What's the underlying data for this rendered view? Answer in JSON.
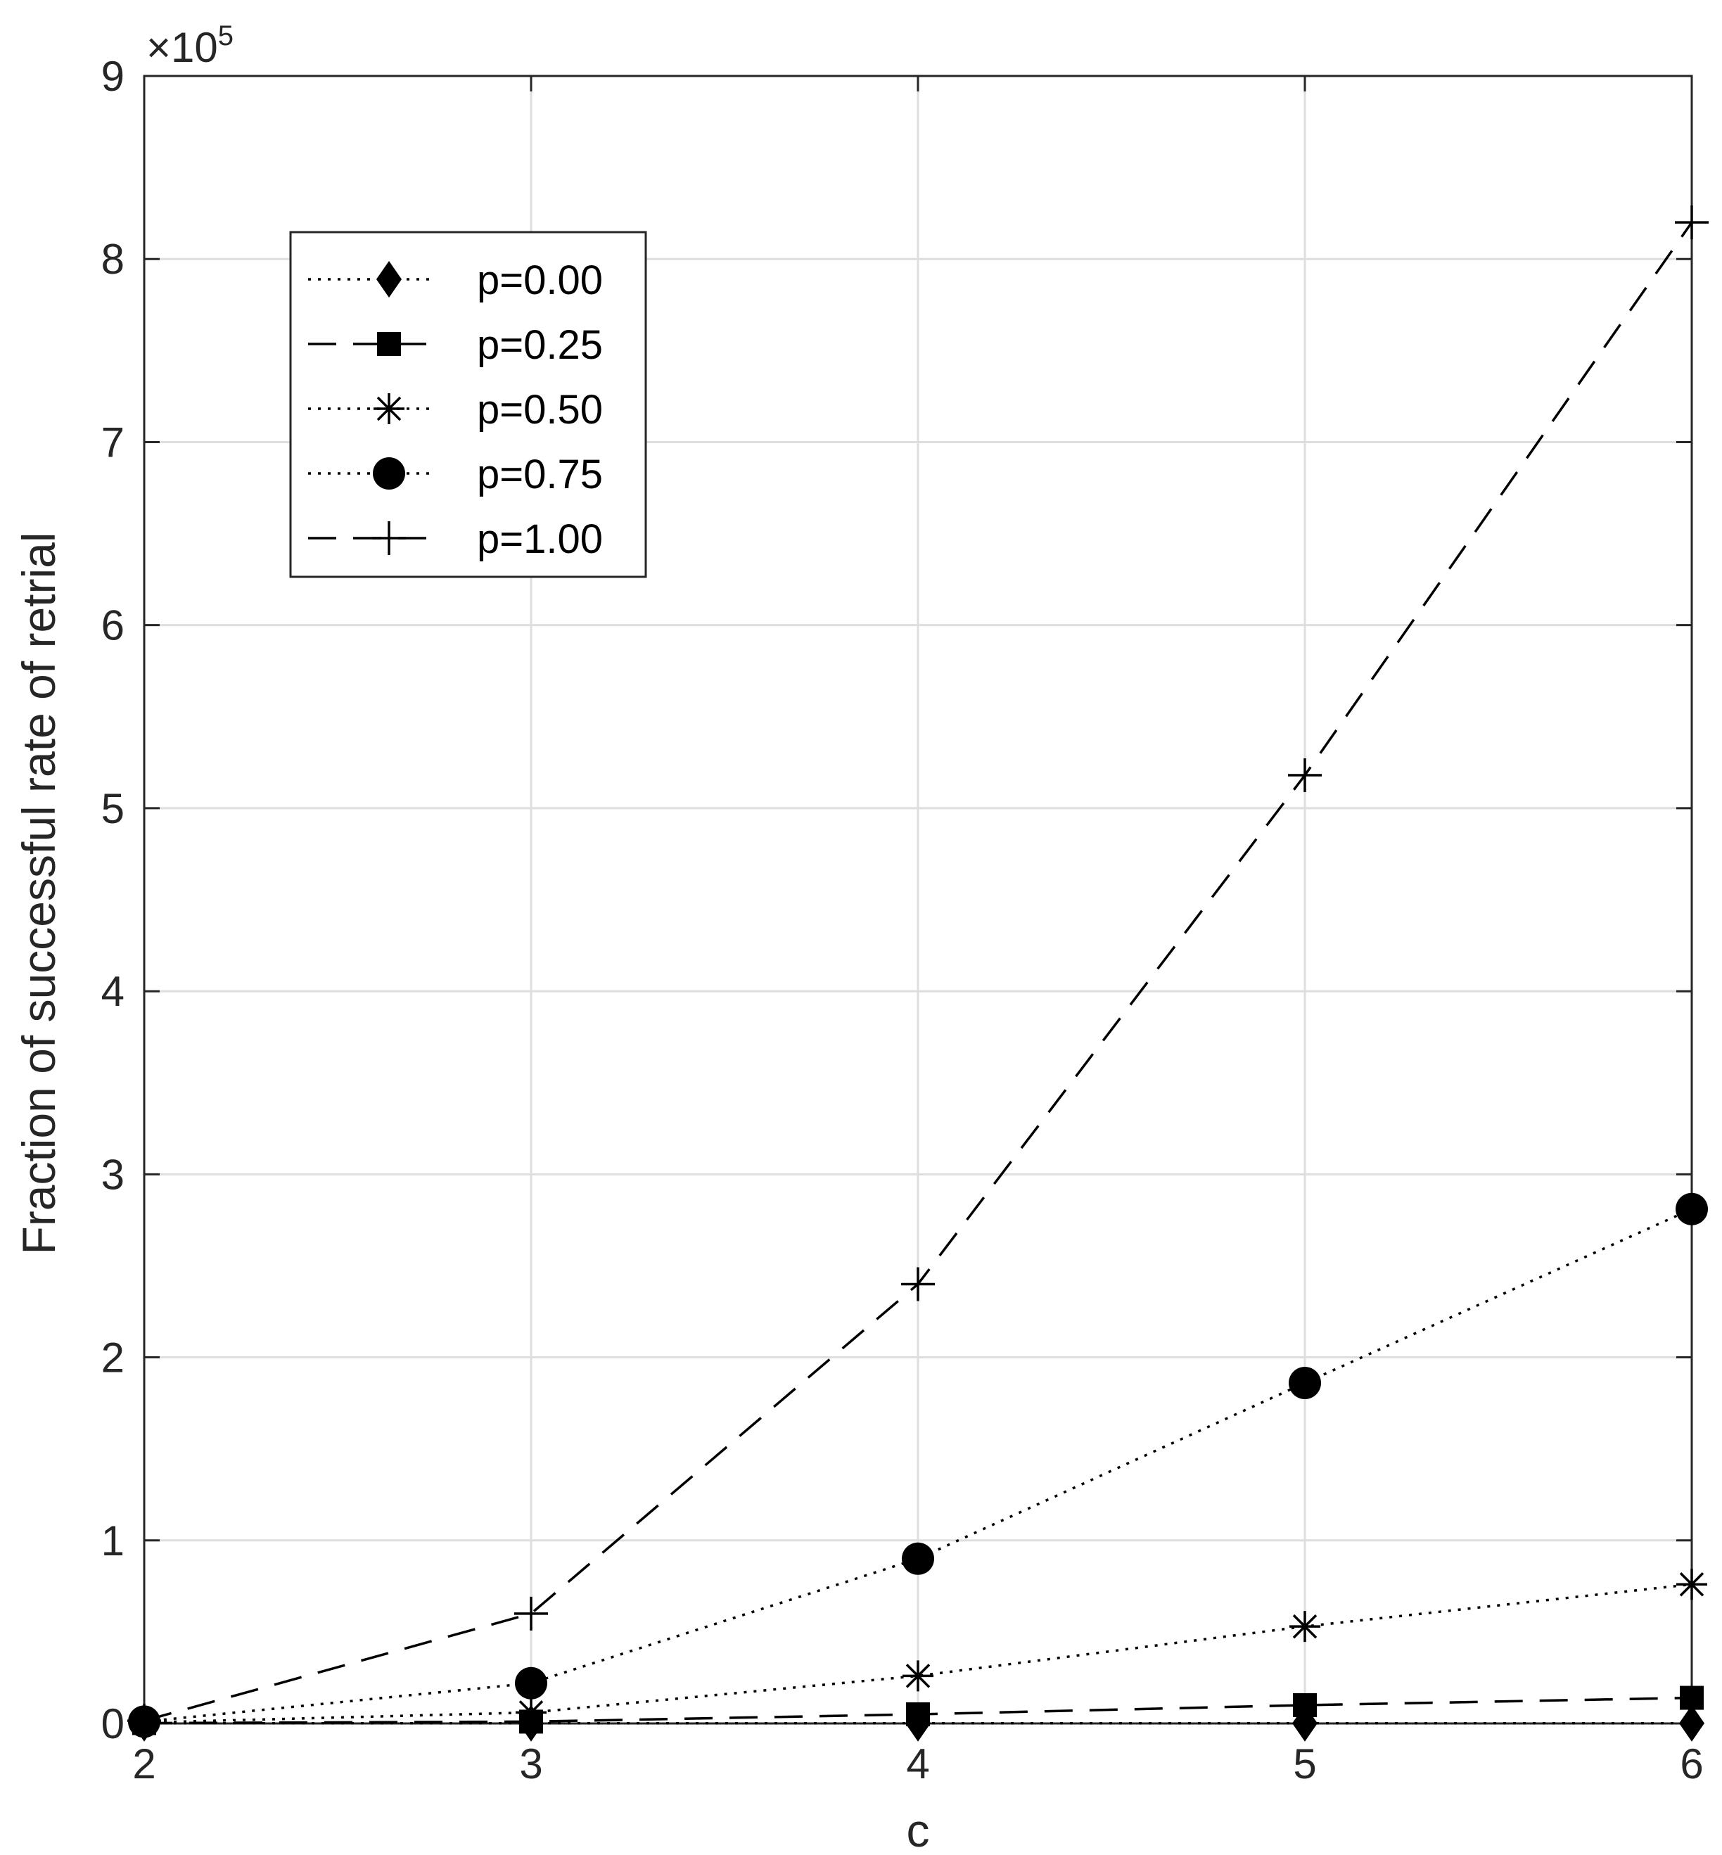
{
  "chart_data": {
    "type": "line",
    "title": "",
    "xlabel": "c",
    "ylabel": "Fraction of successful rate of retrial",
    "x": [
      2,
      3,
      4,
      5,
      6
    ],
    "xlim": [
      2,
      6
    ],
    "ylim": [
      0,
      9
    ],
    "y_scale_label": {
      "prefix": "×10",
      "exponent": "5"
    },
    "xticks": [
      "2",
      "3",
      "4",
      "5",
      "6"
    ],
    "yticks": [
      "0",
      "1",
      "2",
      "3",
      "4",
      "5",
      "6",
      "7",
      "8",
      "9"
    ],
    "grid": true,
    "legend_position": "top-left",
    "series": [
      {
        "name": "p=0.00",
        "marker": "diamond",
        "line": "dotted",
        "values": [
          0.001,
          0.001,
          0.001,
          0.001,
          0.001
        ]
      },
      {
        "name": "p=0.25",
        "marker": "square",
        "line": "dashed",
        "values": [
          0.002,
          0.01,
          0.05,
          0.1,
          0.14
        ]
      },
      {
        "name": "p=0.50",
        "marker": "asterisk",
        "line": "dotted",
        "values": [
          0.005,
          0.06,
          0.26,
          0.53,
          0.76
        ]
      },
      {
        "name": "p=0.75",
        "marker": "circle",
        "line": "dotted",
        "values": [
          0.01,
          0.22,
          0.9,
          1.86,
          2.81
        ]
      },
      {
        "name": "p=1.00",
        "marker": "plus",
        "line": "dashed",
        "values": [
          0.015,
          0.6,
          2.4,
          5.18,
          8.2
        ]
      }
    ]
  }
}
